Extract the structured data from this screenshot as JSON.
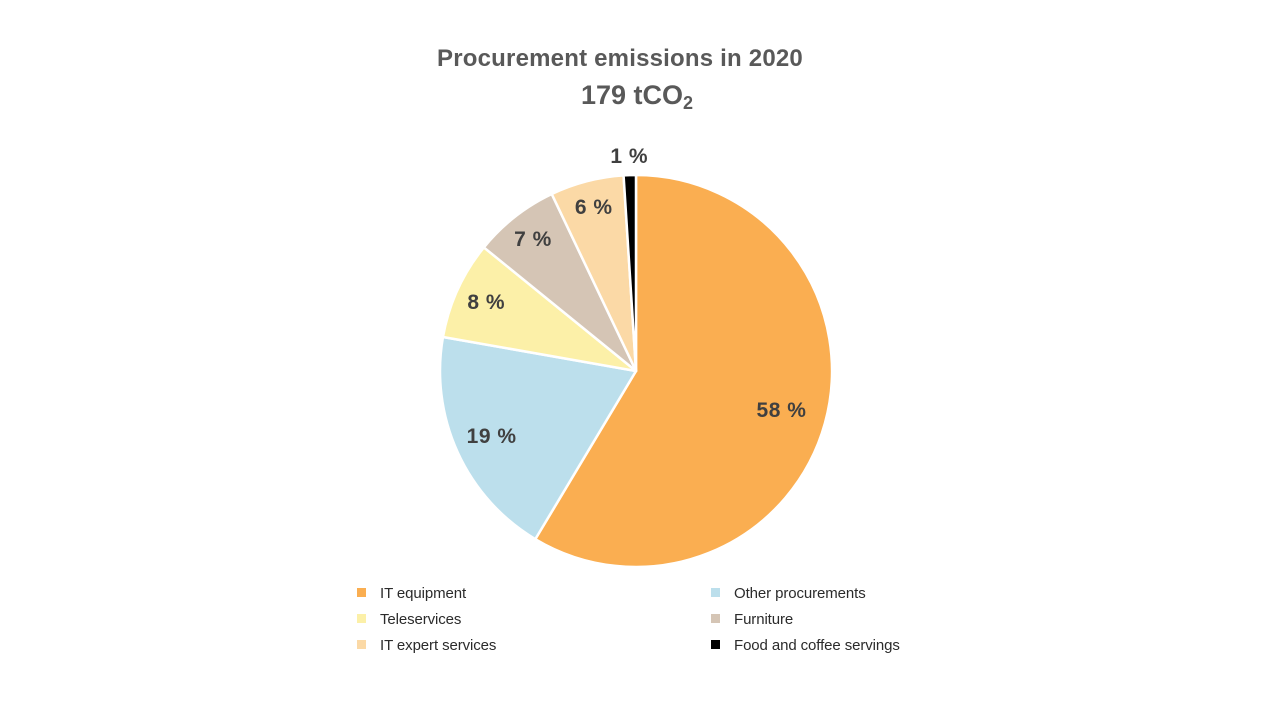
{
  "header": {
    "title": "Procurement emissions in 2020",
    "subtitle_value": "179 tCO",
    "subtitle_sub": "2"
  },
  "chart_data": {
    "type": "pie",
    "title": "Procurement emissions in 2020",
    "total_label": "179 tCO2",
    "total_value": 179,
    "total_unit": "tCO2",
    "start_angle_deg": 0,
    "direction": "clockwise",
    "legend_position": "bottom",
    "legend_layout": "2-columns",
    "slices": [
      {
        "label": "IT equipment",
        "value": 58,
        "pct_label": "58 %",
        "color": "#FAAE51"
      },
      {
        "label": "Other procurements",
        "value": 19,
        "pct_label": "19 %",
        "color": "#BCDFEC"
      },
      {
        "label": "Teleservices",
        "value": 8,
        "pct_label": "8 %",
        "color": "#FCF0A8"
      },
      {
        "label": "Furniture",
        "value": 7,
        "pct_label": "7 %",
        "color": "#D5C5B5"
      },
      {
        "label": "IT expert services",
        "value": 6,
        "pct_label": "6 %",
        "color": "#FBD9A6"
      },
      {
        "label": "Food and coffee servings",
        "value": 1,
        "pct_label": "1 %",
        "color": "#000000"
      }
    ]
  },
  "colors": {
    "background": "#FFFFFF",
    "title_text": "#595959",
    "data_label_text": "#404040",
    "legend_text": "#2B2B2B",
    "slice_border": "#FFFFFF"
  }
}
